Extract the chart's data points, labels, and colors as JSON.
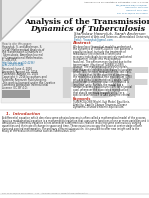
{
  "title_line1": "Analysis of the Transmission",
  "title_line2": "Dynamics of Tuberculosis",
  "journal_info_lines": [
    "American Journal of Computational Mathematics, 2016, 6, 246-259",
    "http://www.scirp.org/journal/ajcm",
    "ISSN Online: 2161-1211",
    "ISSN Print: 2161-1203",
    "DOI: 10.4236/ajcm.2016.63026"
  ],
  "authors": "Stanislaw Hawryluk, Sarah Anderson",
  "affiliation": "Department of Arts and Sciences, Ahmedabad University of Science and Technology, Dedan Kim...",
  "email": "Email: *hawryluk@gmail.com",
  "received": "Received: June 4, 2016",
  "accepted": "Accepted: August 27, 2016",
  "published": "Published: August 30, 2016",
  "abstract_title": "Abstract",
  "abstract_text": "We develop a theoretical model to understand the dynamics of TUBERCULOSIS (TB) patients in population level to study the treatment of individuals (the infection of latent and recovery individuals to regressively medicated to organism insight into its dynamical features). The phenomenon studied due to the transmission infection of TUBERCULOSIS disease. The mathematical analysis reveals that the model exhibits a backward bifurcation where TB-treatment measure of infected class. It is shown that, in the absence of treatment, the model has a disease-free equilibrium (DFE) which is globally asymptotically stable (GAS) and the associated reproduction threshold is less than unity. Further, the model has a unique endemic equilibrium (EEP) for a special case, whenever the associated reproduction that should generate towards unity. For a special case, the EEP is GAS using the central manifold theorem of Castillo Chavez.",
  "keywords_label": "Keywords",
  "keywords_text": "TUBERCULOSIS Model, Sub Model, Equilibria, Stability, Castillo Chavez Theorem, Disease Dynamics, Disease Endemic Equilibrium, Reproduction",
  "section1_title": "1.  Introduction",
  "intro_text": "A differential equation which describes some physical process is often called a mathematical model of the process. Inputs a mathematical equation is a mathematical equation that uses some functions of one or more variables and its derivatives. Differential equation arises whenever a deterministic relation involving some continuously varying quantities and their rate of change in space and time. These equations occupy the place at center stage of both pure and applied mathematics. For ordinary differential equation, it is possible to offer new insight and to the study of the evolution of human such as Tuberculosis 10%.",
  "page_number": "246",
  "background_color": "#f5f5f5",
  "page_color": "#ffffff",
  "text_color": "#222222",
  "title_color": "#111111",
  "accent_color": "#c0392b",
  "link_color": "#2471a3",
  "sidebar_bg": "#eeeeee",
  "pdf_color": "#d0d0d0",
  "footer_color": "#888888",
  "corner_color": "#b8b8b8"
}
